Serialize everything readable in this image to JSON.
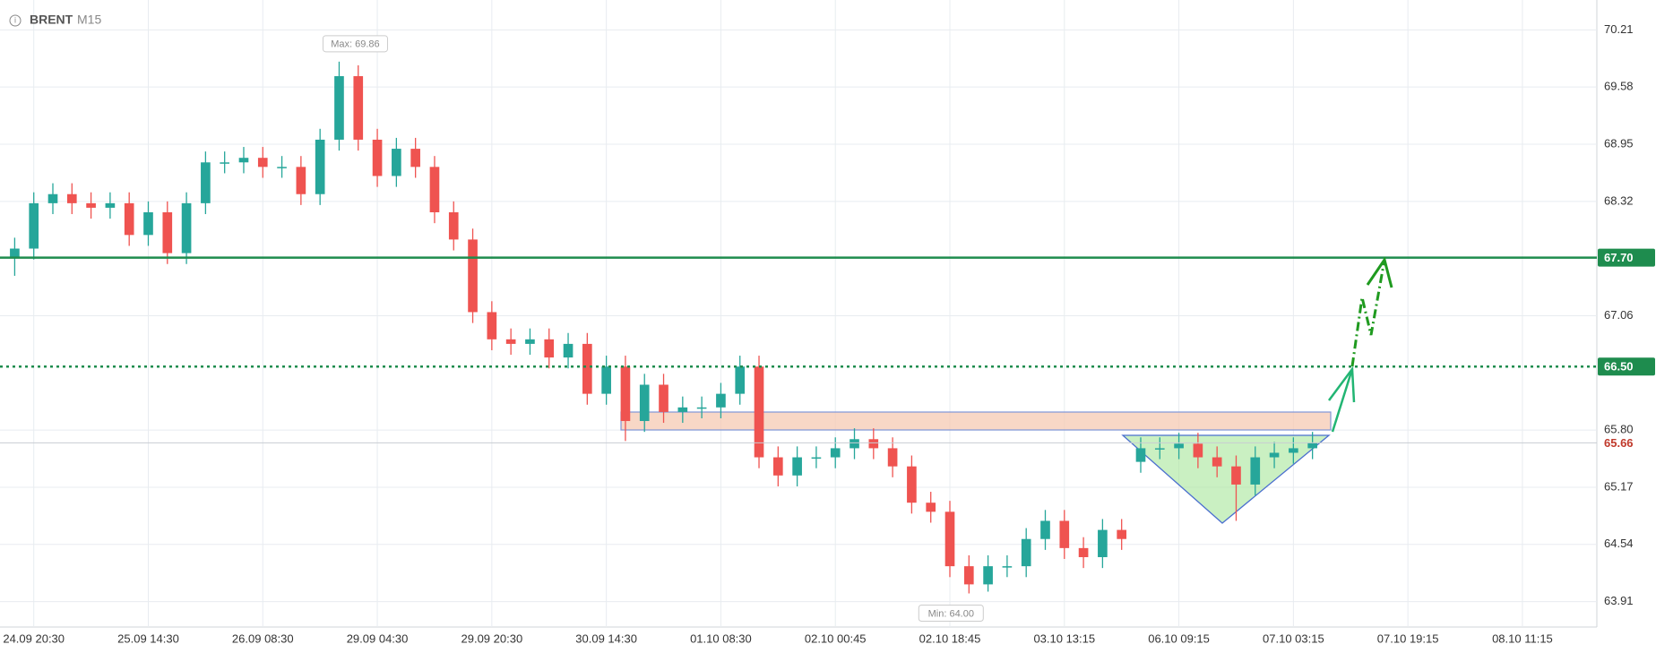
{
  "chart_data": {
    "type": "candlestick",
    "symbol": "BRENT",
    "timeframe": "M15",
    "up_color": "#26a69a",
    "down_color": "#ef5350",
    "x": [
      -1,
      0,
      1,
      2,
      3,
      4,
      5,
      6,
      7,
      8,
      9,
      10,
      11,
      12,
      13,
      14,
      15,
      16,
      17,
      18,
      19,
      20,
      21,
      22,
      23,
      24,
      25,
      26,
      27,
      28,
      29,
      30,
      31,
      32,
      33,
      34,
      35,
      36,
      37,
      38,
      39,
      40,
      41,
      42,
      43,
      44,
      45,
      46,
      47,
      48,
      49,
      50,
      51,
      52,
      53,
      54,
      55,
      56,
      57,
      58,
      59,
      60,
      61,
      62,
      63,
      64,
      65,
      66,
      67
    ],
    "open": [
      67.7,
      67.8,
      68.3,
      68.4,
      68.3,
      68.25,
      68.3,
      67.95,
      68.2,
      67.75,
      68.3,
      68.75,
      68.75,
      68.8,
      68.7,
      68.7,
      68.4,
      69.0,
      69.7,
      69.0,
      68.6,
      68.9,
      68.7,
      68.2,
      67.9,
      67.1,
      66.8,
      66.75,
      66.8,
      66.6,
      66.75,
      66.2,
      66.5,
      65.9,
      66.3,
      66.0,
      66.05,
      66.05,
      66.2,
      66.5,
      65.5,
      65.3,
      65.5,
      65.5,
      65.6,
      65.7,
      65.6,
      65.4,
      65.0,
      64.9,
      64.3,
      64.1,
      64.3,
      64.3,
      64.6,
      64.8,
      64.5,
      64.4,
      64.7,
      65.45,
      65.6,
      65.6,
      65.65,
      65.5,
      65.4,
      65.2,
      65.5,
      65.55,
      65.6
    ],
    "high": [
      67.92,
      68.42,
      68.52,
      68.52,
      68.42,
      68.42,
      68.42,
      68.32,
      68.32,
      68.42,
      68.87,
      68.87,
      68.92,
      68.92,
      68.82,
      68.82,
      69.12,
      69.86,
      69.82,
      69.12,
      69.02,
      69.02,
      68.82,
      68.32,
      68.02,
      67.22,
      66.92,
      66.92,
      66.92,
      66.87,
      66.87,
      66.62,
      66.62,
      66.42,
      66.42,
      66.17,
      66.17,
      66.32,
      66.62,
      66.62,
      65.62,
      65.62,
      65.62,
      65.72,
      65.82,
      65.82,
      65.72,
      65.52,
      65.12,
      65.02,
      64.42,
      64.42,
      64.42,
      64.72,
      64.92,
      64.92,
      64.62,
      64.82,
      64.82,
      65.72,
      65.72,
      65.77,
      65.77,
      65.62,
      65.52,
      65.62,
      65.67,
      65.72,
      65.78
    ],
    "low": [
      67.5,
      67.68,
      68.18,
      68.18,
      68.13,
      68.13,
      67.83,
      67.83,
      67.63,
      67.63,
      68.18,
      68.63,
      68.63,
      68.58,
      68.58,
      68.28,
      68.28,
      68.88,
      68.88,
      68.48,
      68.48,
      68.58,
      68.08,
      67.78,
      66.98,
      66.68,
      66.63,
      66.63,
      66.48,
      66.48,
      66.08,
      66.08,
      65.68,
      65.78,
      65.88,
      65.88,
      65.93,
      65.93,
      66.08,
      65.38,
      65.18,
      65.18,
      65.38,
      65.38,
      65.48,
      65.48,
      65.28,
      64.88,
      64.78,
      64.18,
      64.0,
      64.02,
      64.18,
      64.18,
      64.48,
      64.38,
      64.28,
      64.28,
      64.48,
      65.33,
      65.48,
      65.48,
      65.38,
      65.28,
      64.8,
      65.08,
      65.38,
      65.43,
      65.48
    ],
    "close": [
      67.8,
      68.3,
      68.4,
      68.3,
      68.25,
      68.3,
      67.95,
      68.2,
      67.75,
      68.3,
      68.75,
      68.75,
      68.8,
      68.7,
      68.7,
      68.4,
      69.0,
      69.7,
      69.0,
      68.6,
      68.9,
      68.7,
      68.2,
      67.9,
      67.1,
      66.8,
      66.75,
      66.8,
      66.6,
      66.75,
      66.2,
      66.5,
      65.9,
      66.3,
      66.0,
      66.05,
      66.05,
      66.2,
      66.5,
      65.5,
      65.3,
      65.5,
      65.5,
      65.6,
      65.7,
      65.6,
      65.4,
      65.0,
      64.9,
      64.3,
      64.1,
      64.3,
      64.3,
      64.6,
      64.8,
      64.5,
      64.4,
      64.7,
      64.6,
      65.6,
      65.6,
      65.65,
      65.5,
      65.4,
      65.2,
      65.5,
      65.55,
      65.6,
      65.66
    ],
    "xlim": [
      -1.77,
      81.9
    ],
    "xticks": [
      {
        "value": 0,
        "label": "24.09 20:30"
      },
      {
        "value": 6,
        "label": "25.09 14:30"
      },
      {
        "value": 12,
        "label": "26.09 08:30"
      },
      {
        "value": 18,
        "label": "29.09 04:30"
      },
      {
        "value": 24,
        "label": "29.09 20:30"
      },
      {
        "value": 30,
        "label": "30.09 14:30"
      },
      {
        "value": 36,
        "label": "01.10 08:30"
      },
      {
        "value": 42,
        "label": "02.10 00:45"
      },
      {
        "value": 48,
        "label": "02.10 18:45"
      },
      {
        "value": 54,
        "label": "03.10 13:15"
      },
      {
        "value": 60,
        "label": "06.10 09:15"
      },
      {
        "value": 66,
        "label": "07.10 03:15"
      },
      {
        "value": 72,
        "label": "07.10 19:15"
      },
      {
        "value": 78,
        "label": "08.10 11:15"
      }
    ],
    "ylim": [
      63.63,
      70.48
    ],
    "yticks": [
      70.21,
      69.58,
      68.95,
      68.32,
      67.06,
      {
        "value": 65.8,
        "label": "65.80"
      },
      65.17,
      64.54,
      63.91
    ],
    "grid": true,
    "levels": [
      {
        "value": 67.7,
        "label": "67.70",
        "style": "solid",
        "color": "#1e8c4e"
      },
      {
        "value": 66.5,
        "label": "66.50",
        "style": "dotted",
        "color": "#1e8c4e"
      }
    ],
    "last_price": 65.66,
    "max_label": "Max: 69.86",
    "min_label": "Min: 64.00"
  }
}
